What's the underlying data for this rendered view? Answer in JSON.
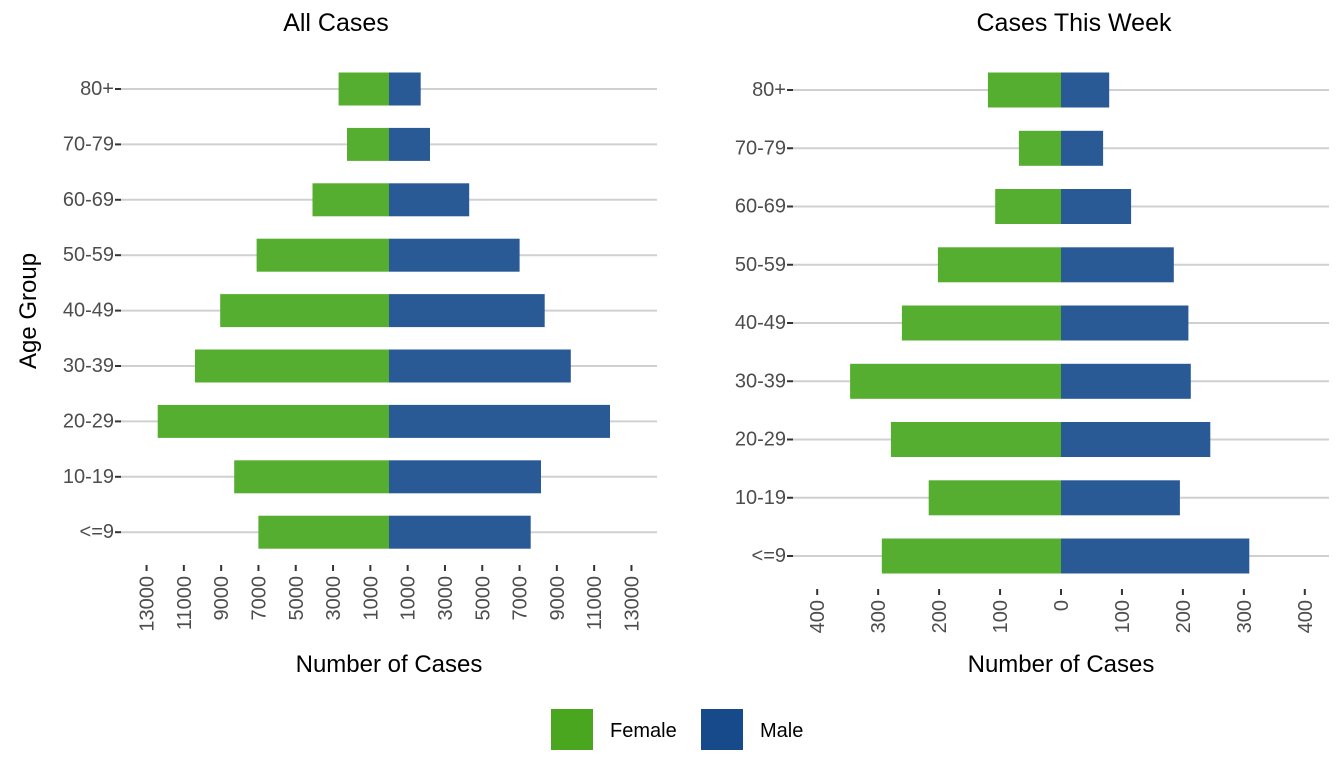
{
  "chart_data": [
    {
      "type": "bar",
      "subtype": "population-pyramid",
      "title": "All Cases",
      "xlabel": "Number of Cases",
      "ylabel": "Age Group",
      "categories": [
        "80+",
        "70-79",
        "60-69",
        "50-59",
        "40-49",
        "30-39",
        "20-29",
        "10-19",
        "<=9"
      ],
      "series": [
        {
          "name": "Female",
          "side": "left",
          "values": [
            2700,
            2250,
            4100,
            7100,
            9050,
            10400,
            12400,
            8300,
            7000
          ]
        },
        {
          "name": "Male",
          "side": "right",
          "values": [
            1700,
            2200,
            4300,
            7000,
            8350,
            9750,
            11850,
            8150,
            7600
          ]
        }
      ],
      "xlim": [
        -14000,
        14000
      ],
      "xticks": [
        -13000,
        -11000,
        -9000,
        -7000,
        -5000,
        -3000,
        -1000,
        1000,
        3000,
        5000,
        7000,
        9000,
        11000,
        13000
      ],
      "xtick_labels": [
        "13000",
        "11000",
        "9000",
        "7000",
        "5000",
        "3000",
        "1000",
        "1000",
        "3000",
        "5000",
        "7000",
        "9000",
        "11000",
        "13000"
      ],
      "grid": "horizontal"
    },
    {
      "type": "bar",
      "subtype": "population-pyramid",
      "title": "Cases This Week",
      "xlabel": "Number of Cases",
      "ylabel": "",
      "categories": [
        "80+",
        "70-79",
        "60-69",
        "50-59",
        "40-49",
        "30-39",
        "20-29",
        "10-19",
        "<=9"
      ],
      "series": [
        {
          "name": "Female",
          "side": "left",
          "values": [
            120,
            69,
            108,
            202,
            261,
            346,
            279,
            217,
            294
          ]
        },
        {
          "name": "Male",
          "side": "right",
          "values": [
            79,
            69,
            115,
            185,
            209,
            213,
            245,
            195,
            309
          ]
        }
      ],
      "xlim": [
        -435,
        435
      ],
      "xticks": [
        -400,
        -300,
        -200,
        -100,
        0,
        100,
        200,
        300,
        400
      ],
      "xtick_labels": [
        "400",
        "300",
        "200",
        "100",
        "0",
        "100",
        "200",
        "300",
        "400"
      ],
      "grid": "horizontal"
    }
  ],
  "legend": {
    "position": "bottom",
    "items": [
      {
        "label": "Female",
        "color": "#49A61E",
        "bar_color": "#55AE30"
      },
      {
        "label": "Male",
        "color": "#174A8B",
        "bar_color": "#2A5A96"
      }
    ]
  }
}
